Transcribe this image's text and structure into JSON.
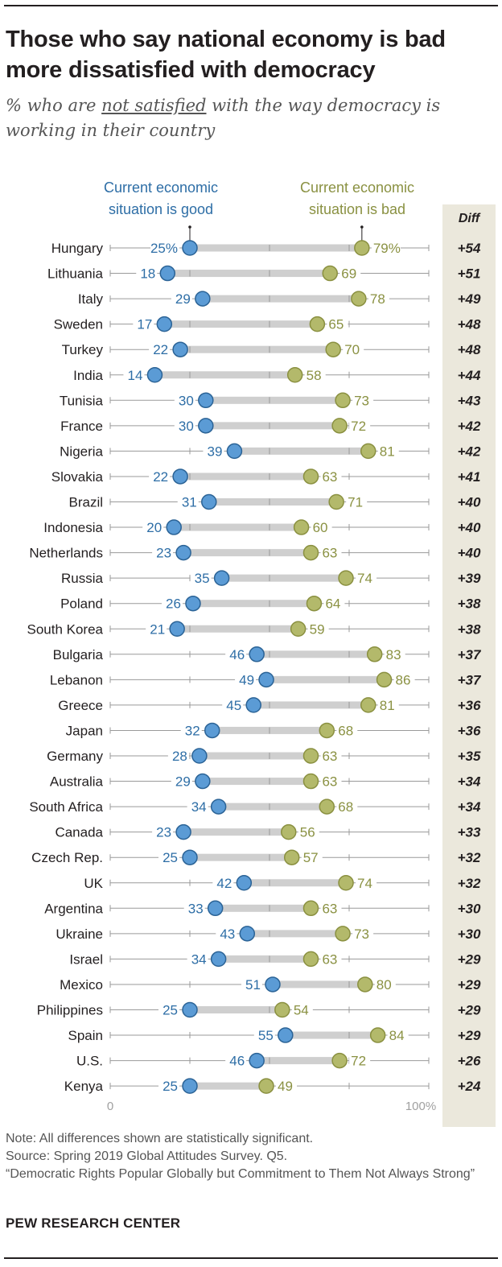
{
  "title": "Those who say national economy is bad more dissatisfied with democracy",
  "subtitle": {
    "prefix": "% who are ",
    "underlined": "not satisfied",
    "suffix": " with the way democracy is working in their country"
  },
  "legend": {
    "good_line1": "Current economic",
    "good_line2": "situation is good",
    "bad_line1": "Current economic",
    "bad_line2": "situation is bad",
    "diff_header": "Diff"
  },
  "colors": {
    "good": "#5b9bd5",
    "good_stroke": "#2b6396",
    "good_text": "#2e6ea6",
    "bad": "#b3b96b",
    "bad_stroke": "#8a9040",
    "bad_text": "#8a9142",
    "bar": "#cfcfcf",
    "diff_bg": "#ebe8dc"
  },
  "chart_data": {
    "type": "dot",
    "title": "Those who say national economy is bad more dissatisfied with democracy",
    "xlim": [
      0,
      100
    ],
    "axis_labels": [
      "0",
      "100%"
    ],
    "series": [
      {
        "name": "Current economic situation is good",
        "values": [
          25,
          18,
          29,
          17,
          22,
          14,
          30,
          30,
          39,
          22,
          31,
          20,
          23,
          35,
          26,
          21,
          46,
          49,
          45,
          32,
          28,
          29,
          34,
          23,
          25,
          42,
          33,
          43,
          34,
          51,
          25,
          55,
          46,
          25
        ]
      },
      {
        "name": "Current economic situation is bad",
        "values": [
          79,
          69,
          78,
          65,
          70,
          58,
          73,
          72,
          81,
          63,
          71,
          60,
          63,
          74,
          64,
          59,
          83,
          86,
          81,
          68,
          63,
          63,
          68,
          56,
          57,
          74,
          63,
          73,
          63,
          80,
          54,
          84,
          72,
          49
        ]
      }
    ],
    "rows": [
      {
        "country": "Hungary",
        "good": 25,
        "bad": 79,
        "good_label": "25%",
        "bad_label": "79%",
        "diff": "+54"
      },
      {
        "country": "Lithuania",
        "good": 18,
        "bad": 69,
        "good_label": "18",
        "bad_label": "69",
        "diff": "+51"
      },
      {
        "country": "Italy",
        "good": 29,
        "bad": 78,
        "good_label": "29",
        "bad_label": "78",
        "diff": "+49"
      },
      {
        "country": "Sweden",
        "good": 17,
        "bad": 65,
        "good_label": "17",
        "bad_label": "65",
        "diff": "+48"
      },
      {
        "country": "Turkey",
        "good": 22,
        "bad": 70,
        "good_label": "22",
        "bad_label": "70",
        "diff": "+48"
      },
      {
        "country": "India",
        "good": 14,
        "bad": 58,
        "good_label": "14",
        "bad_label": "58",
        "diff": "+44"
      },
      {
        "country": "Tunisia",
        "good": 30,
        "bad": 73,
        "good_label": "30",
        "bad_label": "73",
        "diff": "+43"
      },
      {
        "country": "France",
        "good": 30,
        "bad": 72,
        "good_label": "30",
        "bad_label": "72",
        "diff": "+42"
      },
      {
        "country": "Nigeria",
        "good": 39,
        "bad": 81,
        "good_label": "39",
        "bad_label": "81",
        "diff": "+42"
      },
      {
        "country": "Slovakia",
        "good": 22,
        "bad": 63,
        "good_label": "22",
        "bad_label": "63",
        "diff": "+41"
      },
      {
        "country": "Brazil",
        "good": 31,
        "bad": 71,
        "good_label": "31",
        "bad_label": "71",
        "diff": "+40"
      },
      {
        "country": "Indonesia",
        "good": 20,
        "bad": 60,
        "good_label": "20",
        "bad_label": "60",
        "diff": "+40"
      },
      {
        "country": "Netherlands",
        "good": 23,
        "bad": 63,
        "good_label": "23",
        "bad_label": "63",
        "diff": "+40"
      },
      {
        "country": "Russia",
        "good": 35,
        "bad": 74,
        "good_label": "35",
        "bad_label": "74",
        "diff": "+39"
      },
      {
        "country": "Poland",
        "good": 26,
        "bad": 64,
        "good_label": "26",
        "bad_label": "64",
        "diff": "+38"
      },
      {
        "country": "South Korea",
        "good": 21,
        "bad": 59,
        "good_label": "21",
        "bad_label": "59",
        "diff": "+38"
      },
      {
        "country": "Bulgaria",
        "good": 46,
        "bad": 83,
        "good_label": "46",
        "bad_label": "83",
        "diff": "+37"
      },
      {
        "country": "Lebanon",
        "good": 49,
        "bad": 86,
        "good_label": "49",
        "bad_label": "86",
        "diff": "+37"
      },
      {
        "country": "Greece",
        "good": 45,
        "bad": 81,
        "good_label": "45",
        "bad_label": "81",
        "diff": "+36"
      },
      {
        "country": "Japan",
        "good": 32,
        "bad": 68,
        "good_label": "32",
        "bad_label": "68",
        "diff": "+36"
      },
      {
        "country": "Germany",
        "good": 28,
        "bad": 63,
        "good_label": "28",
        "bad_label": "63",
        "diff": "+35"
      },
      {
        "country": "Australia",
        "good": 29,
        "bad": 63,
        "good_label": "29",
        "bad_label": "63",
        "diff": "+34"
      },
      {
        "country": "South Africa",
        "good": 34,
        "bad": 68,
        "good_label": "34",
        "bad_label": "68",
        "diff": "+34"
      },
      {
        "country": "Canada",
        "good": 23,
        "bad": 56,
        "good_label": "23",
        "bad_label": "56",
        "diff": "+33"
      },
      {
        "country": "Czech Rep.",
        "good": 25,
        "bad": 57,
        "good_label": "25",
        "bad_label": "57",
        "diff": "+32"
      },
      {
        "country": "UK",
        "good": 42,
        "bad": 74,
        "good_label": "42",
        "bad_label": "74",
        "diff": "+32"
      },
      {
        "country": "Argentina",
        "good": 33,
        "bad": 63,
        "good_label": "33",
        "bad_label": "63",
        "diff": "+30"
      },
      {
        "country": "Ukraine",
        "good": 43,
        "bad": 73,
        "good_label": "43",
        "bad_label": "73",
        "diff": "+30"
      },
      {
        "country": "Israel",
        "good": 34,
        "bad": 63,
        "good_label": "34",
        "bad_label": "63",
        "diff": "+29"
      },
      {
        "country": "Mexico",
        "good": 51,
        "bad": 80,
        "good_label": "51",
        "bad_label": "80",
        "diff": "+29"
      },
      {
        "country": "Philippines",
        "good": 25,
        "bad": 54,
        "good_label": "25",
        "bad_label": "54",
        "diff": "+29"
      },
      {
        "country": "Spain",
        "good": 55,
        "bad": 84,
        "good_label": "55",
        "bad_label": "84",
        "diff": "+29"
      },
      {
        "country": "U.S.",
        "good": 46,
        "bad": 72,
        "good_label": "46",
        "bad_label": "72",
        "diff": "+26"
      },
      {
        "country": "Kenya",
        "good": 25,
        "bad": 49,
        "good_label": "25",
        "bad_label": "49",
        "diff": "+24"
      }
    ]
  },
  "notes": {
    "note": "Note: All differences shown are statistically significant.",
    "source": "Source: Spring 2019 Global Attitudes Survey. Q5.",
    "report": "“Democratic Rights Popular Globally but Commitment to Them Not Always Strong”"
  },
  "brand": "PEW RESEARCH CENTER"
}
